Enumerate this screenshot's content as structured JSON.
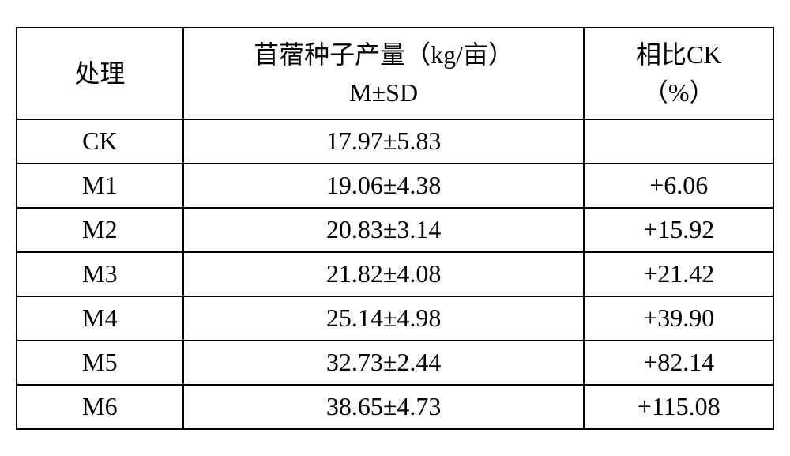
{
  "table": {
    "type": "table",
    "columns": [
      {
        "header_line1": "处理",
        "header_line2": "",
        "width_pct": 22,
        "align": "center"
      },
      {
        "header_line1": "苜蓿种子产量（kg/亩）",
        "header_line2": "M±SD",
        "width_pct": 53,
        "align": "center"
      },
      {
        "header_line1": "相比CK",
        "header_line2": "（%）",
        "width_pct": 25,
        "align": "center"
      }
    ],
    "rows": [
      [
        "CK",
        "17.97±5.83",
        ""
      ],
      [
        "M1",
        "19.06±4.38",
        "+6.06"
      ],
      [
        "M2",
        "20.83±3.14",
        "+15.92"
      ],
      [
        "M3",
        "21.82±4.08",
        "+21.42"
      ],
      [
        "M4",
        "25.14±4.98",
        "+39.90"
      ],
      [
        "M5",
        "32.73±2.44",
        "+82.14"
      ],
      [
        "M6",
        "38.65±4.73",
        "+115.08"
      ]
    ],
    "border_color": "#000000",
    "background_color": "#ffffff",
    "font_size": 32,
    "font_family": "SimSun",
    "text_color": "#000000",
    "header_row_height": 116,
    "data_row_height": 56,
    "border_width": 2
  }
}
